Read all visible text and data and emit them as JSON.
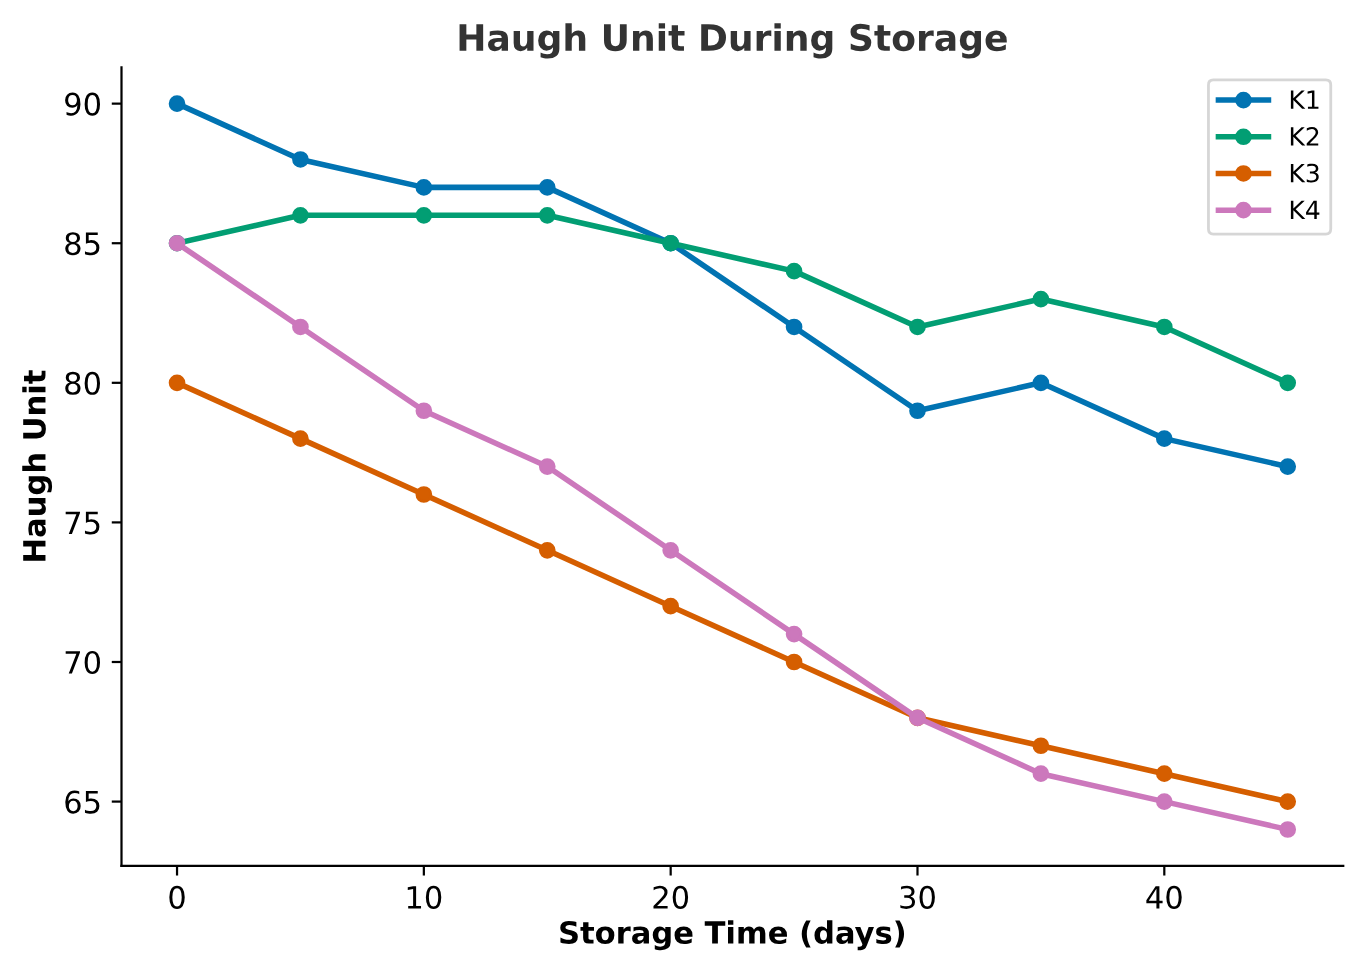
{
  "chart_data": {
    "type": "line",
    "title": "Haugh Unit During Storage",
    "xlabel": "Storage Time (days)",
    "ylabel": "Haugh Unit",
    "x": [
      0,
      5,
      10,
      15,
      20,
      25,
      30,
      35,
      40,
      45
    ],
    "series": [
      {
        "name": "K1",
        "color": "#0173b2",
        "values": [
          90,
          88,
          87,
          87,
          85,
          82,
          79,
          80,
          78,
          77
        ]
      },
      {
        "name": "K2",
        "color": "#029e73",
        "values": [
          85,
          86,
          86,
          86,
          85,
          84,
          82,
          83,
          82,
          80
        ]
      },
      {
        "name": "K3",
        "color": "#d55e00",
        "values": [
          80,
          78,
          76,
          74,
          72,
          70,
          68,
          67,
          66,
          65
        ]
      },
      {
        "name": "K4",
        "color": "#cc78bc",
        "values": [
          85,
          82,
          79,
          77,
          74,
          71,
          68,
          66,
          65,
          64
        ]
      }
    ],
    "xlim": [
      -2.25,
      47.25
    ],
    "ylim": [
      62.7,
      91.3
    ],
    "xticks": [
      0,
      10,
      20,
      30,
      40
    ],
    "yticks": [
      65,
      70,
      75,
      80,
      85,
      90
    ],
    "grid": false,
    "legend": "top right",
    "marker": "circle",
    "line_style": "solid"
  }
}
